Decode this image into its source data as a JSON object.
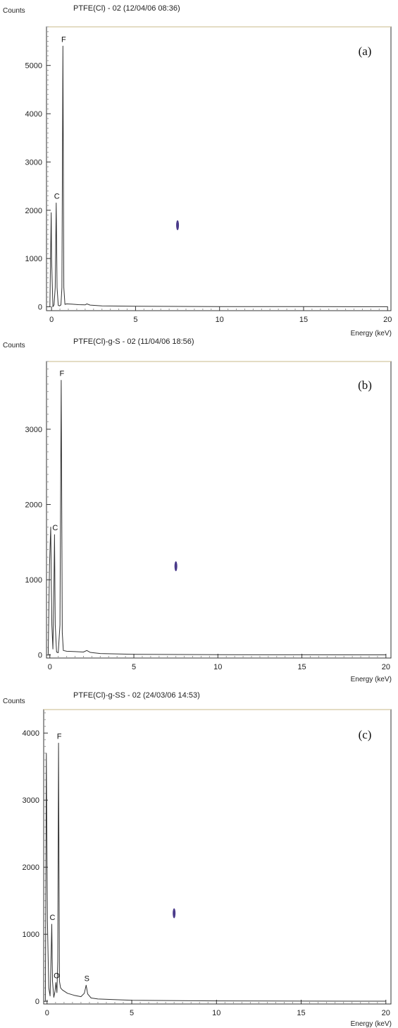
{
  "chart_data": [
    {
      "type": "line",
      "title": "PTFE(Cl) - 02 (12/04/06 08:36)",
      "ylabel": "Counts",
      "xlabel": "Energy (keV)",
      "panel_label": "(a)",
      "xlim": [
        -0.3,
        20.2
      ],
      "ylim": [
        -80,
        5800
      ],
      "xticks": [
        0,
        5,
        10,
        15,
        20
      ],
      "yticks": [
        0,
        1000,
        2000,
        3000,
        4000,
        5000
      ],
      "peaks": [
        {
          "label": "C",
          "x": 0.277,
          "y": 2150
        },
        {
          "label": "F",
          "x": 0.677,
          "y": 5400
        }
      ],
      "series": [
        {
          "x": [
            -0.1,
            -0.02,
            0.0,
            0.08,
            0.15,
            0.22,
            0.277,
            0.33,
            0.4,
            0.48,
            0.56,
            0.62,
            0.677,
            0.73,
            0.8,
            0.9,
            1.2,
            1.6,
            2.0,
            2.1,
            2.3,
            3.0,
            5.0,
            10.0,
            15.0,
            20.0
          ],
          "values": [
            0,
            1950,
            1000,
            0,
            40,
            400,
            2150,
            400,
            30,
            20,
            40,
            400,
            5400,
            400,
            50,
            60,
            55,
            45,
            40,
            60,
            35,
            20,
            10,
            5,
            3,
            2
          ]
        }
      ]
    },
    {
      "type": "line",
      "title": "PTFE(Cl)-g-S - 02 (11/04/06 18:56)",
      "ylabel": "Counts",
      "xlabel": "Energy (keV)",
      "panel_label": "(b)",
      "xlim": [
        -0.2,
        20.3
      ],
      "ylim": [
        -40,
        3900
      ],
      "xticks": [
        0,
        5,
        10,
        15,
        20
      ],
      "yticks": [
        0,
        1000,
        2000,
        3000
      ],
      "peaks": [
        {
          "label": "C",
          "x": 0.277,
          "y": 1600
        },
        {
          "label": "F",
          "x": 0.677,
          "y": 3650
        }
      ],
      "series": [
        {
          "x": [
            -0.1,
            -0.02,
            0.05,
            0.12,
            0.18,
            0.24,
            0.277,
            0.32,
            0.4,
            0.5,
            0.6,
            0.677,
            0.74,
            0.8,
            1.0,
            1.5,
            2.0,
            2.2,
            2.4,
            3.0,
            5.0,
            10.0,
            15.0,
            20.0
          ],
          "values": [
            0,
            1200,
            1700,
            400,
            80,
            900,
            1600,
            400,
            40,
            30,
            400,
            3650,
            300,
            60,
            50,
            45,
            40,
            60,
            35,
            20,
            10,
            5,
            3,
            2
          ]
        }
      ]
    },
    {
      "type": "line",
      "title": "PTFE(Cl)-g-SS - 02 (24/03/06 14:53)",
      "ylabel": "Counts",
      "xlabel": "Energy (keV)",
      "panel_label": "(c)",
      "xlim": [
        -0.2,
        20.3
      ],
      "ylim": [
        -40,
        4350
      ],
      "xticks": [
        0,
        5,
        10,
        15,
        20
      ],
      "yticks": [
        0,
        1000,
        2000,
        3000,
        4000
      ],
      "peaks": [
        {
          "label": "C",
          "x": 0.277,
          "y": 1150
        },
        {
          "label": "O",
          "x": 0.525,
          "y": 280
        },
        {
          "label": "F",
          "x": 0.677,
          "y": 3850
        },
        {
          "label": "S",
          "x": 2.307,
          "y": 240
        }
      ],
      "series": [
        {
          "x": [
            -0.1,
            -0.04,
            0.02,
            0.1,
            0.18,
            0.24,
            0.277,
            0.32,
            0.4,
            0.47,
            0.525,
            0.58,
            0.63,
            0.677,
            0.73,
            0.8,
            0.9,
            1.2,
            1.6,
            2.0,
            2.2,
            2.307,
            2.4,
            2.6,
            3.0,
            5.0,
            10.0,
            15.0,
            20.0
          ],
          "values": [
            0,
            3700,
            1200,
            200,
            80,
            700,
            1150,
            300,
            60,
            150,
            280,
            130,
            600,
            3850,
            300,
            200,
            170,
            120,
            90,
            70,
            120,
            240,
            110,
            50,
            35,
            15,
            6,
            3,
            2
          ]
        }
      ]
    }
  ]
}
